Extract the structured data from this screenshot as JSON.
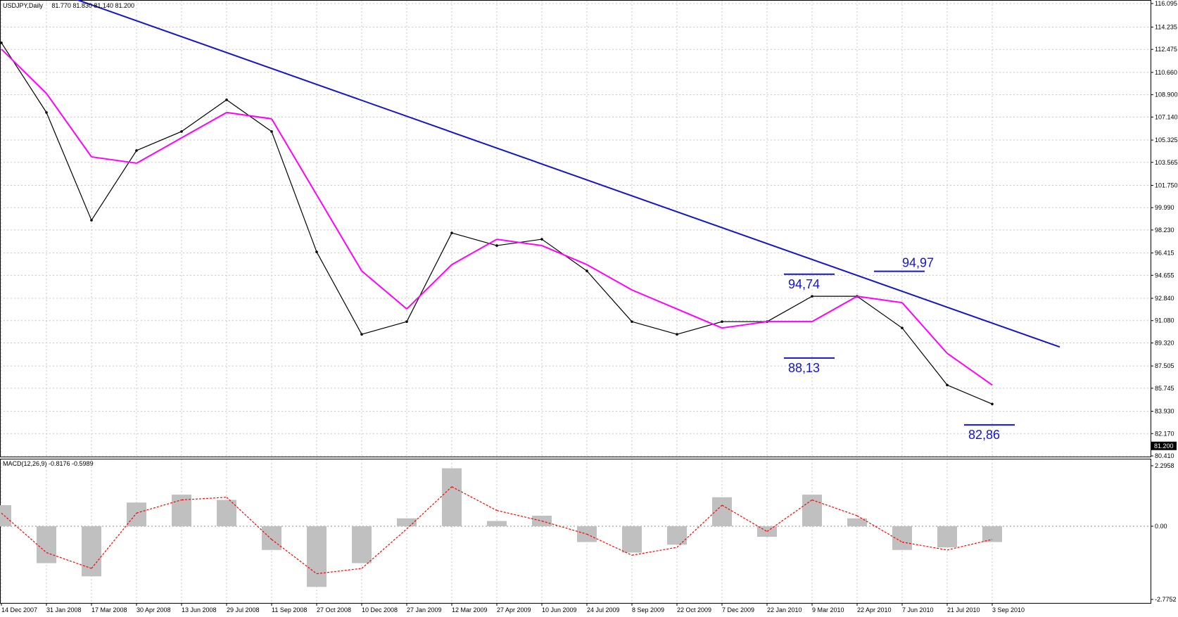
{
  "chart_data": {
    "type": "line",
    "header": {
      "symbol": "USDJPY,Daily",
      "ohlc": "81.770 81.830 81.140 81.200",
      "current_price_label": "81.200"
    },
    "x_dates": [
      "14 Dec 2007",
      "31 Jan 2008",
      "17 Mar 2008",
      "30 Apr 2008",
      "13 Jun 2008",
      "29 Jul 2008",
      "11 Sep 2008",
      "27 Oct 2008",
      "10 Dec 2008",
      "27 Jan 2009",
      "12 Mar 2009",
      "27 Apr 2009",
      "10 Jun 2009",
      "24 Jul 2009",
      "8 Sep 2009",
      "22 Oct 2009",
      "7 Dec 2009",
      "22 Jan 2010",
      "9 Mar 2010",
      "22 Apr 2010",
      "7 Jun 2010",
      "21 Jul 2010",
      "3 Sep 2010"
    ],
    "price_axis": {
      "ticks": [
        "116.095",
        "114.235",
        "112.475",
        "110.660",
        "108.900",
        "107.140",
        "105.325",
        "103.565",
        "101.750",
        "99.990",
        "98.230",
        "96.415",
        "94.655",
        "92.840",
        "91.080",
        "89.320",
        "87.505",
        "85.745",
        "83.930",
        "82.170",
        "80.410"
      ],
      "range": [
        80.41,
        116.095
      ]
    },
    "price_series": {
      "name": "USDJPY Daily",
      "x": [
        "14 Dec 2007",
        "31 Jan 2008",
        "17 Mar 2008",
        "30 Apr 2008",
        "13 Jun 2008",
        "29 Jul 2008",
        "11 Sep 2008",
        "27 Oct 2008",
        "10 Dec 2008",
        "27 Jan 2009",
        "12 Mar 2009",
        "27 Apr 2009",
        "10 Jun 2009",
        "24 Jul 2009",
        "8 Sep 2009",
        "22 Oct 2009",
        "7 Dec 2009",
        "22 Jan 2010",
        "9 Mar 2010",
        "22 Apr 2010",
        "7 Jun 2010",
        "21 Jul 2010",
        "3 Sep 2010"
      ],
      "close": [
        113.0,
        107.5,
        99.0,
        104.5,
        106.0,
        108.5,
        106.0,
        96.5,
        90.0,
        91.0,
        98.0,
        97.0,
        97.5,
        95.0,
        91.0,
        90.0,
        91.0,
        91.0,
        93.0,
        93.0,
        90.5,
        86.0,
        84.5
      ]
    },
    "moving_average": {
      "x": [
        "14 Dec 2007",
        "31 Jan 2008",
        "17 Mar 2008",
        "30 Apr 2008",
        "13 Jun 2008",
        "29 Jul 2008",
        "11 Sep 2008",
        "27 Oct 2008",
        "10 Dec 2008",
        "27 Jan 2009",
        "12 Mar 2009",
        "27 Apr 2009",
        "10 Jun 2009",
        "24 Jul 2009",
        "8 Sep 2009",
        "22 Oct 2009",
        "7 Dec 2009",
        "22 Jan 2010",
        "9 Mar 2010",
        "22 Apr 2010",
        "7 Jun 2010",
        "21 Jul 2010",
        "3 Sep 2010"
      ],
      "values": [
        112.5,
        109.0,
        104.0,
        103.5,
        105.5,
        107.5,
        107.0,
        101.0,
        95.0,
        92.0,
        95.5,
        97.5,
        97.0,
        95.5,
        93.5,
        92.0,
        90.5,
        91.0,
        91.0,
        93.0,
        92.5,
        88.5,
        86.0
      ],
      "color": "#ff00ff"
    },
    "trendline": {
      "start": {
        "x": "14 Dec 2007",
        "y": 118.5
      },
      "end": {
        "x": "3 Sep 2010",
        "y": 89.0
      },
      "color": "#1515c8"
    },
    "levels": [
      {
        "label": "94,74",
        "value": 94.74,
        "from": "22 Jan 2010",
        "to": "9 Mar 2010"
      },
      {
        "label": "94,97",
        "value": 94.97,
        "from": "22 Apr 2010",
        "to": "7 Jun 2010"
      },
      {
        "label": "88,13",
        "value": 88.13,
        "from": "22 Jan 2010",
        "to": "9 Mar 2010"
      },
      {
        "label": "82,86",
        "value": 82.86,
        "from": "21 Jul 2010",
        "to": "3 Sep 2010"
      }
    ],
    "macd": {
      "label": "MACD(12,26,9) -0.8176 -0.5989",
      "ticks": [
        "2.2958",
        "0.00",
        "-2.7752"
      ],
      "range": [
        -2.7752,
        2.2958
      ],
      "x": [
        "14 Dec 2007",
        "31 Jan 2008",
        "17 Mar 2008",
        "30 Apr 2008",
        "13 Jun 2008",
        "29 Jul 2008",
        "11 Sep 2008",
        "27 Oct 2008",
        "10 Dec 2008",
        "27 Jan 2009",
        "12 Mar 2009",
        "27 Apr 2009",
        "10 Jun 2009",
        "24 Jul 2009",
        "8 Sep 2009",
        "22 Oct 2009",
        "7 Dec 2009",
        "22 Jan 2010",
        "9 Mar 2010",
        "22 Apr 2010",
        "7 Jun 2010",
        "21 Jul 2010",
        "3 Sep 2010"
      ],
      "histogram": [
        0.8,
        -1.4,
        -1.9,
        0.9,
        1.2,
        1.0,
        -0.9,
        -2.3,
        -1.4,
        0.3,
        2.2,
        0.2,
        0.4,
        -0.6,
        -1.0,
        -0.7,
        1.1,
        -0.4,
        1.2,
        0.3,
        -0.9,
        -0.8,
        -0.6
      ],
      "signal": [
        0.5,
        -1.0,
        -1.6,
        0.5,
        1.0,
        1.1,
        -0.5,
        -1.8,
        -1.6,
        -0.1,
        1.5,
        0.6,
        0.2,
        -0.3,
        -1.1,
        -0.8,
        0.8,
        -0.2,
        1.0,
        0.4,
        -0.6,
        -0.9,
        -0.5
      ],
      "histogram_color": "#c0c0c0",
      "signal_color": "#ff0000"
    },
    "grid": true
  }
}
